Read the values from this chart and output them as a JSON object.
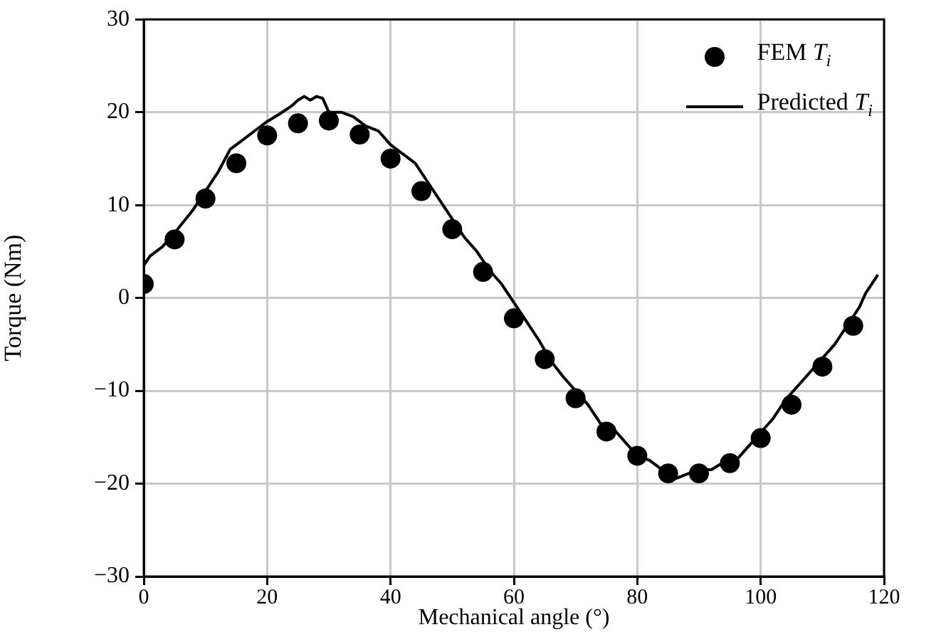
{
  "chart_data": {
    "type": "scatter",
    "xlabel": "Mechanical angle (°)",
    "ylabel": "Torque (Nm)",
    "xlim": [
      0,
      120
    ],
    "xticks": [
      0,
      20,
      40,
      60,
      80,
      100,
      120
    ],
    "ylim": [
      -30,
      30
    ],
    "yticks": [
      -30,
      -20,
      -10,
      0,
      10,
      20,
      30
    ],
    "grid": true,
    "legend": "top right",
    "series": [
      {
        "name": "FEM T$_{i}$",
        "marker": "circle",
        "color": "#000000",
        "x": [
          0,
          5,
          10,
          15,
          20,
          25,
          30,
          35,
          40,
          45,
          50,
          55,
          60,
          65,
          70,
          75,
          80,
          85,
          90,
          95,
          100,
          105,
          110,
          115
        ],
        "values": [
          1.5,
          6.3,
          10.7,
          14.5,
          17.5,
          18.8,
          19.1,
          17.6,
          15,
          11.5,
          7.4,
          2.8,
          -2.2,
          -6.6,
          -10.8,
          -14.4,
          -17,
          -18.9,
          -18.9,
          -17.8,
          -15.1,
          -11.5,
          -7.4,
          -3.0
        ]
      },
      {
        "name": "Predicted T$_{i}$",
        "type": "line",
        "marker": "none",
        "line_style": "solid",
        "color": "#000000",
        "x": [
          0,
          1,
          3,
          5,
          8,
          10,
          12,
          14,
          16,
          18,
          20,
          22,
          24,
          25,
          26,
          27,
          28,
          29,
          30,
          32,
          34,
          36,
          38,
          40,
          42,
          44,
          46,
          48,
          50,
          52,
          54,
          56,
          58,
          60,
          62,
          64,
          66,
          68,
          70,
          72,
          74,
          76,
          78,
          80,
          82,
          84,
          86,
          88,
          90,
          92,
          94,
          96,
          98,
          100,
          102,
          104,
          106,
          108,
          110,
          112,
          114,
          116,
          117,
          118,
          119
        ],
        "values": [
          3.5,
          4.5,
          5.5,
          7,
          9.5,
          11.5,
          13.5,
          16,
          17,
          18,
          19,
          19.8,
          20.7,
          21.3,
          21.7,
          21.3,
          21.7,
          21.5,
          20,
          20,
          19.5,
          18.5,
          18,
          16.5,
          15.5,
          14.5,
          12.5,
          10.5,
          8.5,
          6.5,
          5,
          3,
          1.5,
          -0.5,
          -2.5,
          -4.5,
          -6.8,
          -8.5,
          -10,
          -11.5,
          -13.5,
          -14,
          -15.5,
          -17,
          -17.5,
          -18.5,
          -19.5,
          -19,
          -18.5,
          -18.5,
          -17.7,
          -17.5,
          -16,
          -14.5,
          -13,
          -11,
          -9.5,
          -8,
          -6.5,
          -5,
          -3,
          -1,
          0.5,
          1.5,
          2.5
        ]
      }
    ]
  }
}
